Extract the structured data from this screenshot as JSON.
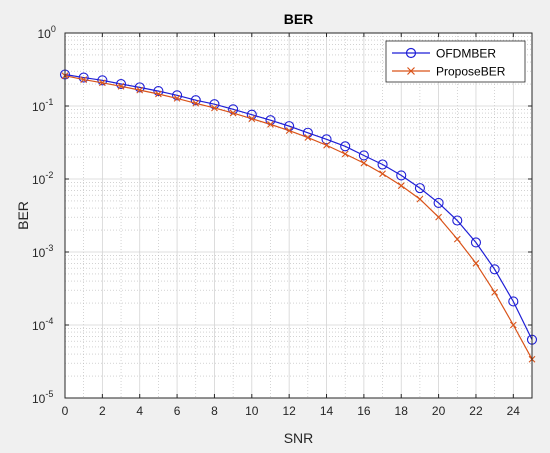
{
  "chart_data": {
    "type": "line",
    "title": "BER",
    "xlabel": "SNR",
    "ylabel": "BER",
    "xlim": [
      0,
      25
    ],
    "ylim": [
      1e-05,
      1
    ],
    "yscale": "log",
    "grid": true,
    "minor_grid": true,
    "legend_position": "top-right",
    "x_ticks": [
      {
        "value": 0,
        "label": "0"
      },
      {
        "value": 2,
        "label": "2"
      },
      {
        "value": 4,
        "label": "4"
      },
      {
        "value": 6,
        "label": "6"
      },
      {
        "value": 8,
        "label": "8"
      },
      {
        "value": 10,
        "label": "10"
      },
      {
        "value": 12,
        "label": "12"
      },
      {
        "value": 14,
        "label": "14"
      },
      {
        "value": 16,
        "label": "16"
      },
      {
        "value": 18,
        "label": "18"
      },
      {
        "value": 20,
        "label": "20"
      },
      {
        "value": 22,
        "label": "22"
      },
      {
        "value": 24,
        "label": "24"
      }
    ],
    "y_ticks": [
      {
        "value": 1,
        "base": "10",
        "exp": "0"
      },
      {
        "value": 0.1,
        "base": "10",
        "exp": "-1"
      },
      {
        "value": 0.01,
        "base": "10",
        "exp": "-2"
      },
      {
        "value": 0.001,
        "base": "10",
        "exp": "-3"
      },
      {
        "value": 0.0001,
        "base": "10",
        "exp": "-4"
      },
      {
        "value": 1e-05,
        "base": "10",
        "exp": "-5"
      }
    ],
    "x": [
      0,
      1,
      2,
      3,
      4,
      5,
      6,
      7,
      8,
      9,
      10,
      11,
      12,
      13,
      14,
      15,
      16,
      17,
      18,
      19,
      20,
      21,
      22,
      23,
      24,
      25
    ],
    "series": [
      {
        "name": "OFDMBER",
        "color": "#1f1fd6",
        "marker": "circle",
        "values": [
          0.27,
          0.245,
          0.225,
          0.2,
          0.18,
          0.16,
          0.14,
          0.12,
          0.106,
          0.09,
          0.076,
          0.064,
          0.053,
          0.043,
          0.035,
          0.028,
          0.021,
          0.0158,
          0.0112,
          0.0075,
          0.0047,
          0.0027,
          0.00135,
          0.00058,
          0.00021,
          6.3e-05
        ]
      },
      {
        "name": "ProposeBER",
        "color": "#d95319",
        "marker": "x",
        "values": [
          0.26,
          0.23,
          0.208,
          0.186,
          0.165,
          0.146,
          0.127,
          0.109,
          0.094,
          0.08,
          0.067,
          0.056,
          0.046,
          0.037,
          0.029,
          0.022,
          0.0165,
          0.0118,
          0.0081,
          0.0053,
          0.003,
          0.0015,
          0.0007,
          0.00028,
          0.0001,
          3.4e-05
        ]
      }
    ]
  }
}
